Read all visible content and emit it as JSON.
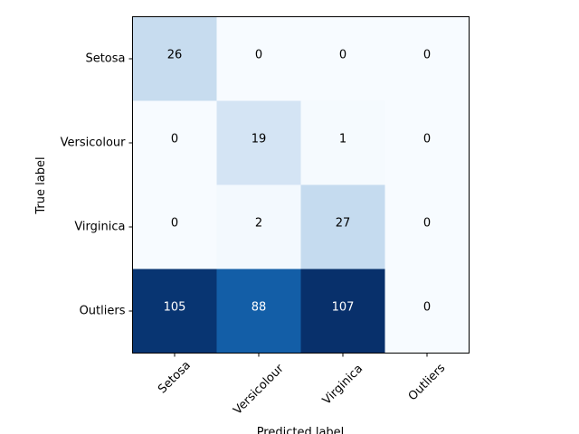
{
  "chart_data": {
    "type": "heatmap",
    "title": "",
    "xlabel": "Predicted label",
    "ylabel": "True label",
    "x_categories": [
      "Setosa",
      "Versicolour",
      "Virginica",
      "Outliers"
    ],
    "y_categories": [
      "Setosa",
      "Versicolour",
      "Virginica",
      "Outliers"
    ],
    "values": [
      [
        26,
        0,
        0,
        0
      ],
      [
        0,
        19,
        1,
        0
      ],
      [
        0,
        2,
        27,
        0
      ],
      [
        105,
        88,
        107,
        0
      ]
    ],
    "colormap": "Blues",
    "x_tick_rotation": 45
  }
}
